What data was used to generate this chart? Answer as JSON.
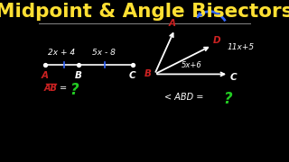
{
  "title": "Midpoint & Angle Bisectors",
  "bg_color": "#000000",
  "title_color": "#FFE033",
  "title_fontsize": 15.5,
  "divider_color": "#888888",
  "left_label_2x4": "2x + 4",
  "left_label_5x8": "5x - 8",
  "left_A": "A",
  "left_B": "B",
  "left_C": "C",
  "left_AB_label": "AB",
  "left_eq_label": "=",
  "left_q_label": "?",
  "right_A": "A",
  "right_B": "B",
  "right_C": "C",
  "right_D": "D",
  "right_arc_label": "11x+5",
  "right_mid_label": "5x+6",
  "right_angle_label": "< ABD =",
  "right_q_label": "?",
  "white": "#FFFFFF",
  "red": "#CC2222",
  "green": "#22CC22",
  "blue": "#3366FF",
  "yellow": "#FFE033"
}
